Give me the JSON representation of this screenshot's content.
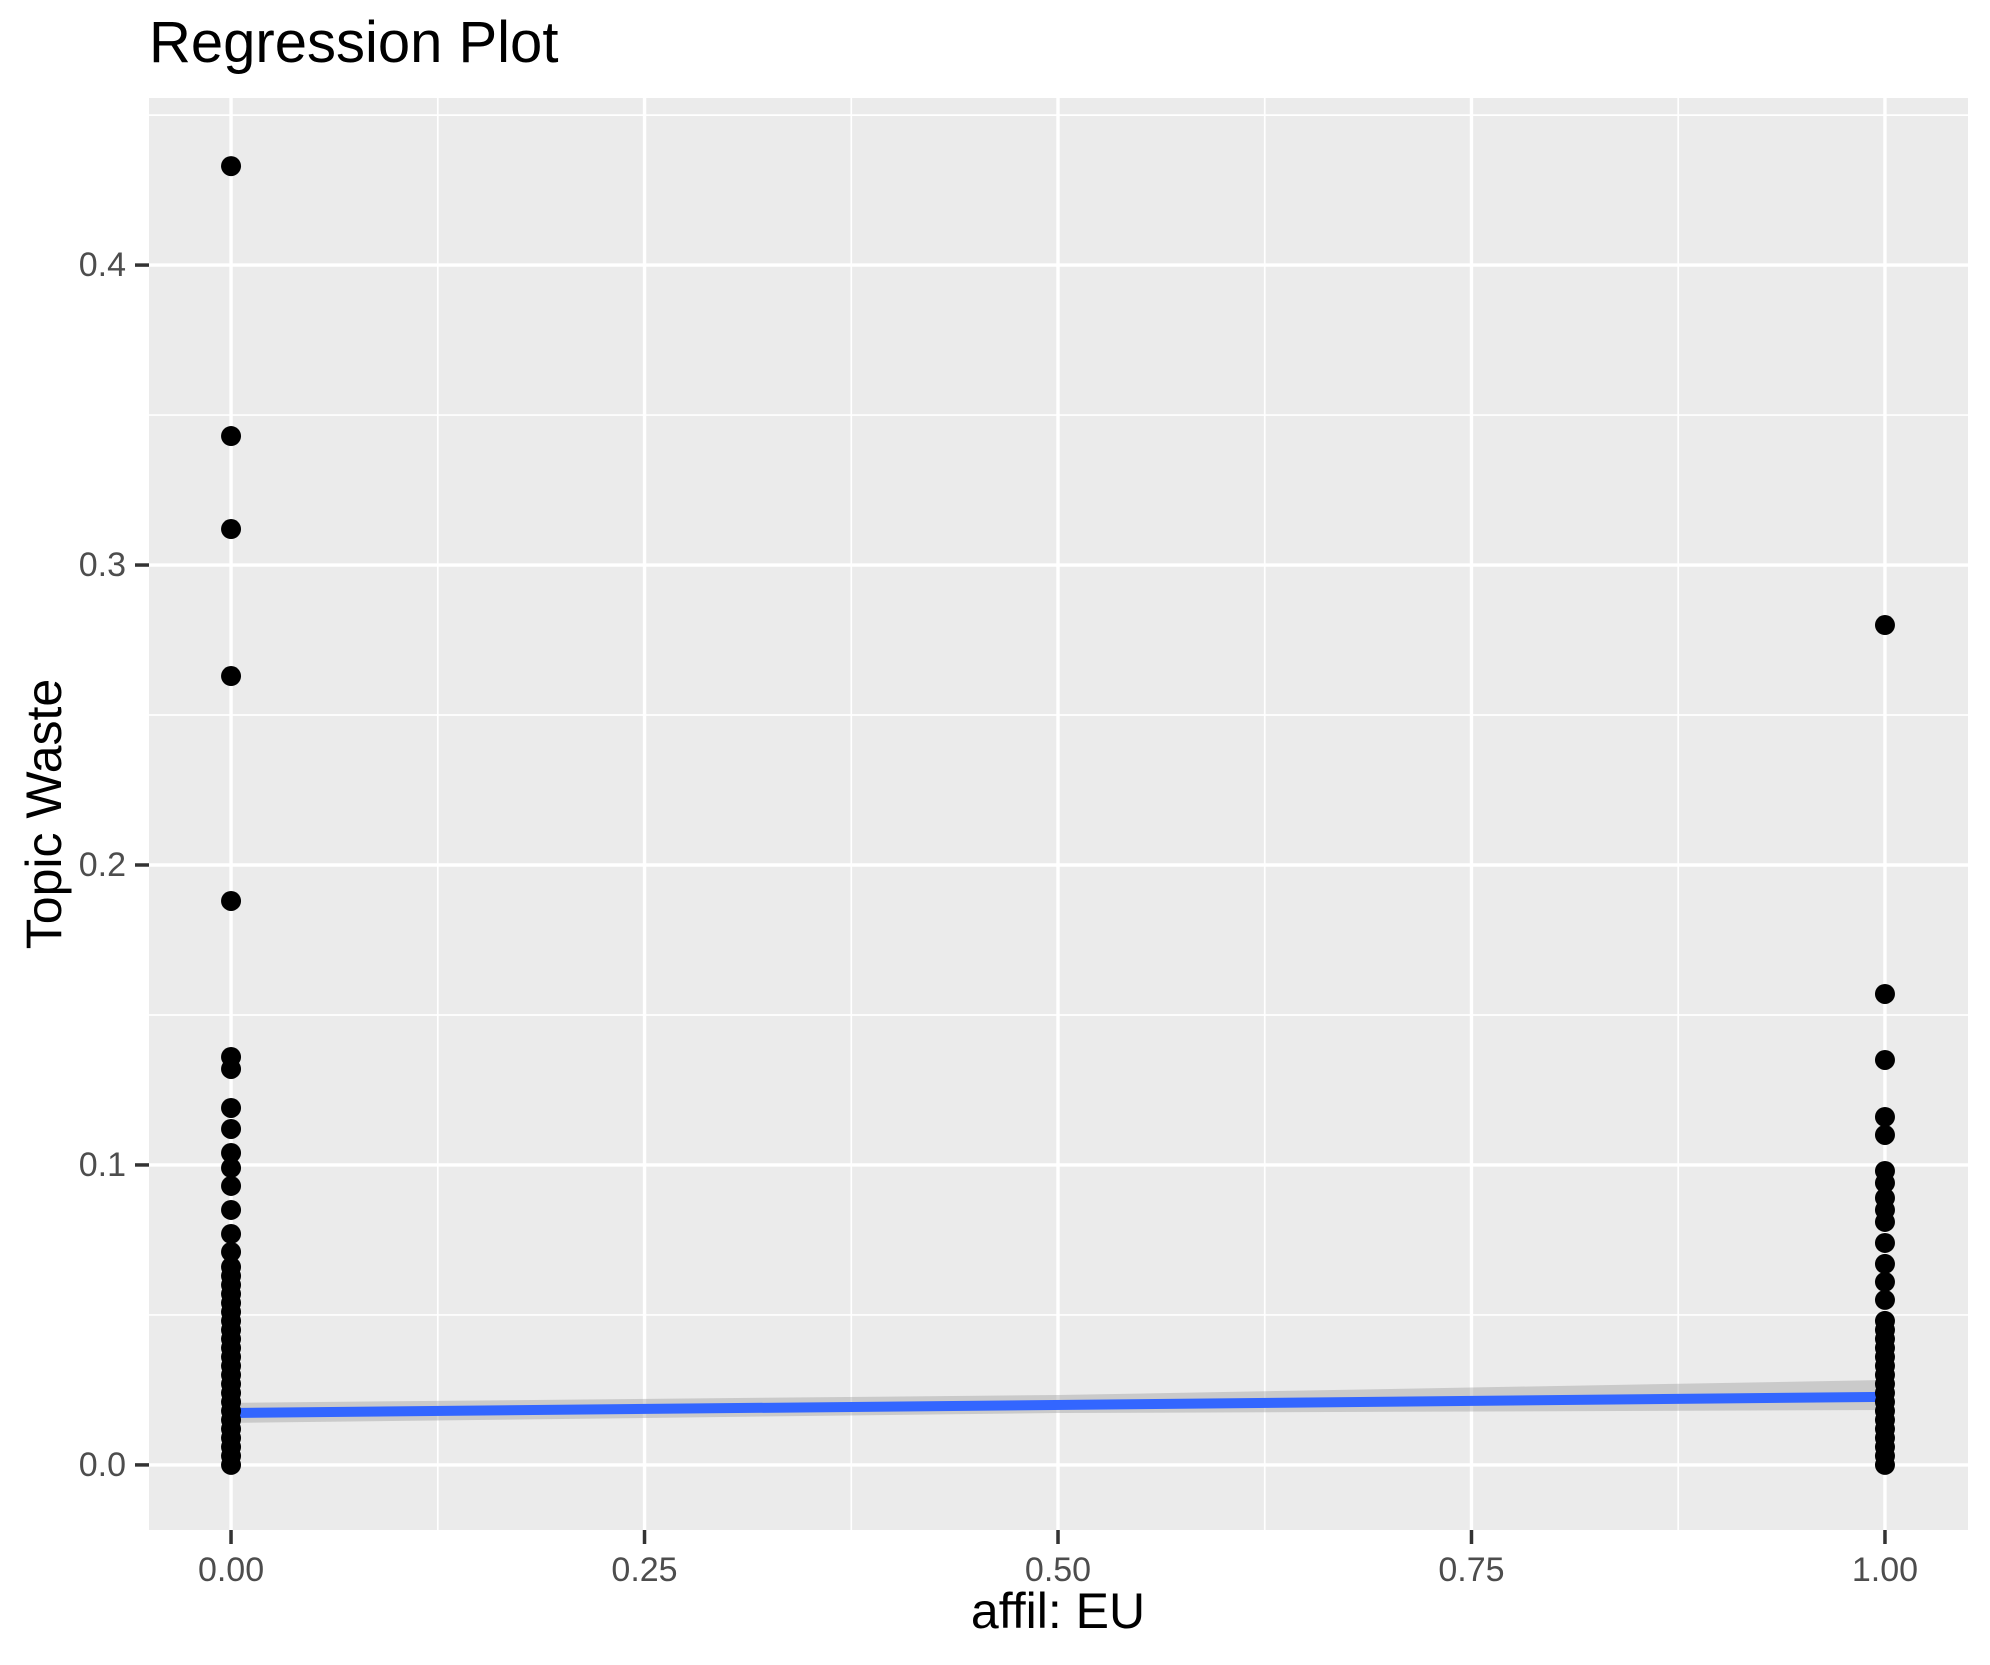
{
  "title": "Regression Plot",
  "chart_data": {
    "type": "scatter",
    "title": "Regression Plot",
    "xlabel": "affil: EU",
    "ylabel": "Topic Waste",
    "x_ticks": [
      0,
      0.25,
      0.5,
      0.75,
      1.0
    ],
    "x_tick_labels": [
      "0.00",
      "0.25",
      "0.50",
      "0.75",
      "1.00"
    ],
    "y_ticks": [
      0,
      0.1,
      0.2,
      0.3,
      0.4
    ],
    "y_tick_labels": [
      "0.0",
      "0.1",
      "0.2",
      "0.3",
      "0.4"
    ],
    "xlim": [
      -0.0496,
      1.0502
    ],
    "ylim": [
      -0.0217,
      0.4557
    ],
    "grid": true,
    "legend": "none",
    "series": [
      {
        "name": "affil = 0",
        "x": 0,
        "values": [
          0.433,
          0.343,
          0.312,
          0.263,
          0.188,
          0.136,
          0.132,
          0.119,
          0.112,
          0.104,
          0.099,
          0.093,
          0.085,
          0.077,
          0.071,
          0.066,
          0.063,
          0.06,
          0.057,
          0.054,
          0.051,
          0.048,
          0.045,
          0.042,
          0.039,
          0.036,
          0.033,
          0.03,
          0.027,
          0.024,
          0.021,
          0.018,
          0.015,
          0.012,
          0.009,
          0.006,
          0.003,
          0.0
        ]
      },
      {
        "name": "affil = 1",
        "x": 1,
        "values": [
          0.28,
          0.157,
          0.135,
          0.116,
          0.11,
          0.098,
          0.094,
          0.089,
          0.085,
          0.081,
          0.074,
          0.067,
          0.061,
          0.055,
          0.048,
          0.045,
          0.042,
          0.039,
          0.036,
          0.033,
          0.03,
          0.027,
          0.024,
          0.021,
          0.018,
          0.015,
          0.012,
          0.009,
          0.006,
          0.003,
          0.0
        ]
      }
    ],
    "regression_line": {
      "x": [
        0,
        1
      ],
      "y": [
        0.0173,
        0.0227
      ]
    },
    "confidence_band": {
      "x": [
        0,
        0.5,
        1
      ],
      "upper": [
        0.0207,
        0.0233,
        0.0283
      ],
      "lower": [
        0.014,
        0.0173,
        0.0183
      ]
    },
    "colors": {
      "panel_bg": "#EBEBEB",
      "grid": "#FFFFFF",
      "point": "#000000",
      "line": "#3366FF",
      "band": "#999999",
      "band_opacity": "0.40",
      "tick_label": "#4D4D4D",
      "tick_mark": "#333333",
      "title_text": "#000000"
    },
    "point_radius_px": 10
  }
}
